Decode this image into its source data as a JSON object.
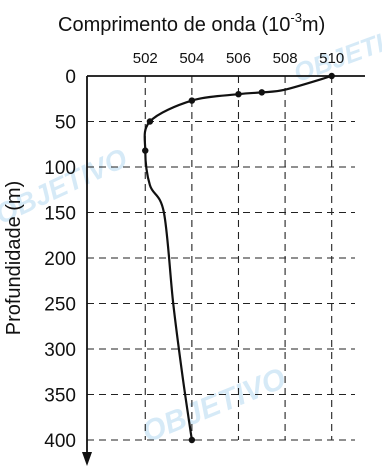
{
  "chart_data": {
    "type": "line",
    "title": "Comprimento de onda (10",
    "title_sup": "-3",
    "title_tail": "m)",
    "ylabel": "Profundidade (m)",
    "x_ticks": [
      "502",
      "504",
      "506",
      "508",
      "510"
    ],
    "y_ticks": [
      "0",
      "50",
      "100",
      "150",
      "200",
      "250",
      "300",
      "350",
      "400"
    ],
    "x_range": [
      499.5,
      511
    ],
    "y_range": [
      0,
      400
    ],
    "y_inverted": true,
    "grid": true,
    "series": [
      {
        "x": [
          510,
          508,
          507,
          506,
          504,
          502.2,
          502,
          502.2,
          502.8,
          503.2,
          503.6,
          504
        ],
        "y": [
          0,
          15,
          18,
          20,
          27,
          50,
          82,
          120,
          150,
          250,
          330,
          400
        ]
      }
    ],
    "markers": {
      "x": [
        510,
        507,
        506,
        504,
        502.2,
        502,
        504
      ],
      "y": [
        0,
        18,
        20,
        27,
        50,
        82,
        400
      ]
    },
    "watermark": "OBJETIVO",
    "colors": {
      "ink": "#111111",
      "watermark": "#4aa3df"
    }
  }
}
